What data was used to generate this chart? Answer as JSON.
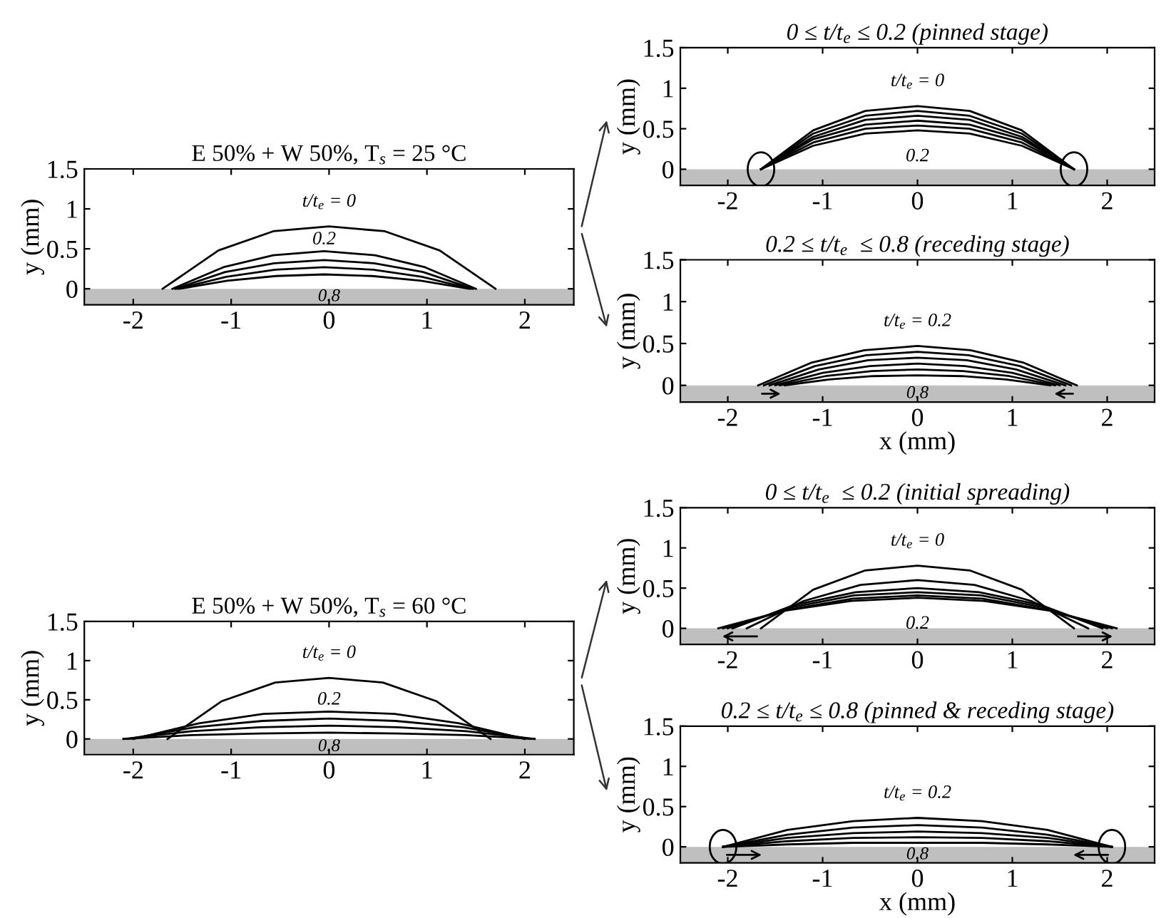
{
  "chart_data": [
    {
      "type": "line",
      "title": "E 50% + W 50%, T$_{s}$ = 25 °C",
      "ylabel": "y (mm)",
      "xlim": [
        -2.5,
        2.5
      ],
      "ylim": [
        -0.2,
        1.5
      ],
      "xticks": [
        -2,
        -1,
        0,
        1,
        2
      ],
      "yticks": [
        0,
        0.5,
        1,
        1.5
      ],
      "grid": false,
      "legend": false,
      "bands": [
        {
          "axis": "y",
          "from": -0.2,
          "to": 0,
          "color": "#bfbfbf"
        }
      ],
      "annotations": [
        "t/t$_{e}$ = 0",
        "0.2",
        "0.8"
      ],
      "series": [
        {
          "color": "#000000",
          "x": [
            -1.7,
            -1.13,
            -0.57,
            0,
            0.57,
            1.13,
            1.7
          ],
          "values": [
            0,
            0.48,
            0.72,
            0.78,
            0.72,
            0.48,
            0
          ]
        },
        {
          "color": "#000000",
          "x": [
            -1.6,
            -1.08,
            -0.57,
            -0.05,
            0.47,
            0.98,
            1.5
          ],
          "values": [
            0,
            0.27,
            0.42,
            0.47,
            0.42,
            0.27,
            0
          ]
        },
        {
          "color": "#000000",
          "x": [
            -1.57,
            -1.06,
            -0.56,
            -0.05,
            0.46,
            0.96,
            1.47
          ],
          "values": [
            0,
            0.21,
            0.32,
            0.36,
            0.32,
            0.21,
            0
          ]
        },
        {
          "color": "#000000",
          "x": [
            -1.55,
            -1.05,
            -0.55,
            -0.05,
            0.45,
            0.95,
            1.45
          ],
          "values": [
            0,
            0.15,
            0.24,
            0.27,
            0.24,
            0.15,
            0
          ]
        },
        {
          "color": "#000000",
          "x": [
            -1.53,
            -1.04,
            -0.54,
            -0.05,
            0.44,
            0.94,
            1.43
          ],
          "values": [
            0,
            0.1,
            0.16,
            0.18,
            0.16,
            0.1,
            0
          ]
        }
      ]
    },
    {
      "type": "line",
      "title": "0 ≤ t/t$_{e}$ ≤ 0.2 (pinned stage)",
      "ylabel": "y (mm)",
      "xlim": [
        -2.5,
        2.5
      ],
      "ylim": [
        -0.2,
        1.5
      ],
      "xticks": [
        -2,
        -1,
        0,
        1,
        2
      ],
      "yticks": [
        0,
        0.5,
        1,
        1.5
      ],
      "grid": false,
      "legend": false,
      "bands": [
        {
          "axis": "y",
          "from": -0.2,
          "to": 0,
          "color": "#bfbfbf"
        }
      ],
      "annotations": [
        "t/t$_{e}$ = 0",
        "0.2"
      ],
      "series": [
        {
          "color": "#000000",
          "x": [
            -1.65,
            -1.1,
            -0.55,
            0,
            0.55,
            1.1,
            1.65
          ],
          "values": [
            0,
            0.48,
            0.72,
            0.78,
            0.72,
            0.48,
            0
          ]
        },
        {
          "color": "#000000",
          "x": [
            -1.65,
            -1.1,
            -0.55,
            0,
            0.55,
            1.1,
            1.65
          ],
          "values": [
            0,
            0.44,
            0.66,
            0.72,
            0.66,
            0.44,
            0
          ]
        },
        {
          "color": "#000000",
          "x": [
            -1.65,
            -1.1,
            -0.55,
            0,
            0.55,
            1.1,
            1.65
          ],
          "values": [
            0,
            0.4,
            0.61,
            0.66,
            0.61,
            0.4,
            0
          ]
        },
        {
          "color": "#000000",
          "x": [
            -1.65,
            -1.1,
            -0.55,
            0,
            0.55,
            1.1,
            1.65
          ],
          "values": [
            0,
            0.37,
            0.55,
            0.6,
            0.55,
            0.37,
            0
          ]
        },
        {
          "color": "#000000",
          "x": [
            -1.65,
            -1.1,
            -0.55,
            0,
            0.55,
            1.1,
            1.65
          ],
          "values": [
            0,
            0.33,
            0.5,
            0.54,
            0.5,
            0.33,
            0
          ]
        },
        {
          "color": "#000000",
          "x": [
            -1.65,
            -1.1,
            -0.55,
            0,
            0.55,
            1.1,
            1.65
          ],
          "values": [
            0,
            0.29,
            0.44,
            0.48,
            0.44,
            0.29,
            0
          ]
        }
      ]
    },
    {
      "type": "line",
      "title": "0.2 ≤ t/t$_{e}$  ≤ 0.8 (receding stage)",
      "xlabel": "x (mm)",
      "ylabel": "y (mm)",
      "xlim": [
        -2.5,
        2.5
      ],
      "ylim": [
        -0.2,
        1.5
      ],
      "xticks": [
        -2,
        -1,
        0,
        1,
        2
      ],
      "yticks": [
        0,
        0.5,
        1,
        1.5
      ],
      "grid": false,
      "legend": false,
      "bands": [
        {
          "axis": "y",
          "from": -0.2,
          "to": 0,
          "color": "#bfbfbf"
        }
      ],
      "annotations": [
        "t/t$_{e}$ = 0.2",
        "0.8"
      ],
      "series": [
        {
          "color": "#000000",
          "x": [
            -1.68,
            -1.12,
            -0.56,
            0,
            0.56,
            1.12,
            1.68
          ],
          "values": [
            0,
            0.27,
            0.42,
            0.47,
            0.42,
            0.27,
            0
          ]
        },
        {
          "color": "#000000",
          "x": [
            -1.62,
            -1.08,
            -0.54,
            0,
            0.54,
            1.08,
            1.62
          ],
          "values": [
            0,
            0.23,
            0.36,
            0.4,
            0.36,
            0.23,
            0
          ]
        },
        {
          "color": "#000000",
          "x": [
            -1.56,
            -1.04,
            -0.52,
            0,
            0.52,
            1.04,
            1.56
          ],
          "values": [
            0,
            0.19,
            0.3,
            0.33,
            0.3,
            0.19,
            0
          ]
        },
        {
          "color": "#000000",
          "x": [
            -1.5,
            -1,
            -0.5,
            0,
            0.5,
            1,
            1.5
          ],
          "values": [
            0,
            0.15,
            0.23,
            0.26,
            0.23,
            0.15,
            0
          ]
        },
        {
          "color": "#000000",
          "x": [
            -1.45,
            -0.97,
            -0.48,
            0,
            0.48,
            0.97,
            1.45
          ],
          "values": [
            0,
            0.11,
            0.17,
            0.19,
            0.17,
            0.11,
            0
          ]
        },
        {
          "color": "#000000",
          "x": [
            -1.4,
            -0.93,
            -0.47,
            0,
            0.47,
            0.93,
            1.4
          ],
          "values": [
            0,
            0.07,
            0.11,
            0.12,
            0.11,
            0.07,
            0
          ]
        }
      ]
    },
    {
      "type": "line",
      "title": "E 50% + W 50%, T$_{s}$ = 60 °C",
      "ylabel": "y (mm)",
      "xlim": [
        -2.5,
        2.5
      ],
      "ylim": [
        -0.2,
        1.5
      ],
      "xticks": [
        -2,
        -1,
        0,
        1,
        2
      ],
      "yticks": [
        0,
        0.5,
        1,
        1.5
      ],
      "grid": false,
      "legend": false,
      "bands": [
        {
          "axis": "y",
          "from": -0.2,
          "to": 0,
          "color": "#bfbfbf"
        }
      ],
      "annotations": [
        "t/t$_{e}$ = 0",
        "0.2",
        "0.8"
      ],
      "series": [
        {
          "color": "#000000",
          "x": [
            -1.65,
            -1.1,
            -0.55,
            0,
            0.55,
            1.1,
            1.65
          ],
          "values": [
            0,
            0.48,
            0.72,
            0.78,
            0.72,
            0.48,
            0
          ]
        },
        {
          "color": "#000000",
          "x": [
            -2,
            -1.33,
            -0.67,
            0,
            0.67,
            1.33,
            2
          ],
          "values": [
            0,
            0.2,
            0.32,
            0.35,
            0.32,
            0.2,
            0
          ]
        },
        {
          "color": "#000000",
          "x": [
            -2.05,
            -1.37,
            -0.68,
            0,
            0.68,
            1.37,
            2.05
          ],
          "values": [
            0,
            0.15,
            0.23,
            0.26,
            0.23,
            0.15,
            0
          ]
        },
        {
          "color": "#000000",
          "x": [
            -2.1,
            -1.4,
            -0.7,
            0,
            0.7,
            1.4,
            2.1
          ],
          "values": [
            0,
            0.1,
            0.15,
            0.17,
            0.15,
            0.1,
            0
          ]
        },
        {
          "color": "#000000",
          "x": [
            -2.1,
            -1.4,
            -0.7,
            0,
            0.7,
            1.4,
            2.1
          ],
          "values": [
            0,
            0.05,
            0.07,
            0.08,
            0.07,
            0.05,
            0
          ]
        }
      ]
    },
    {
      "type": "line",
      "title": "0 ≤ t/t$_{e}$  ≤ 0.2 (initial spreading)",
      "ylabel": "y (mm)",
      "xlim": [
        -2.5,
        2.5
      ],
      "ylim": [
        -0.2,
        1.5
      ],
      "xticks": [
        -2,
        -1,
        0,
        1,
        2
      ],
      "yticks": [
        0,
        0.5,
        1,
        1.5
      ],
      "grid": false,
      "legend": false,
      "bands": [
        {
          "axis": "y",
          "from": -0.2,
          "to": 0,
          "color": "#bfbfbf"
        }
      ],
      "annotations": [
        "t/t$_{e}$ = 0",
        "0.2"
      ],
      "series": [
        {
          "color": "#000000",
          "x": [
            -1.65,
            -1.1,
            -0.55,
            0,
            0.55,
            1.1,
            1.65
          ],
          "values": [
            0,
            0.48,
            0.72,
            0.78,
            0.72,
            0.48,
            0
          ]
        },
        {
          "color": "#000000",
          "x": [
            -1.8,
            -1.2,
            -0.6,
            0,
            0.6,
            1.2,
            1.8
          ],
          "values": [
            0,
            0.34,
            0.54,
            0.6,
            0.54,
            0.34,
            0
          ]
        },
        {
          "color": "#000000",
          "x": [
            -1.95,
            -1.3,
            -0.65,
            0,
            0.65,
            1.3,
            1.95
          ],
          "values": [
            0,
            0.29,
            0.45,
            0.5,
            0.45,
            0.29,
            0
          ]
        },
        {
          "color": "#000000",
          "x": [
            -2,
            -1.33,
            -0.67,
            0,
            0.67,
            1.33,
            2
          ],
          "values": [
            0,
            0.26,
            0.41,
            0.45,
            0.41,
            0.26,
            0
          ]
        },
        {
          "color": "#000000",
          "x": [
            -2.05,
            -1.37,
            -0.68,
            0,
            0.68,
            1.37,
            2.05
          ],
          "values": [
            0,
            0.23,
            0.37,
            0.41,
            0.37,
            0.23,
            0
          ]
        },
        {
          "color": "#000000",
          "x": [
            -2.1,
            -1.4,
            -0.7,
            0,
            0.7,
            1.4,
            2.1
          ],
          "values": [
            0,
            0.22,
            0.34,
            0.38,
            0.34,
            0.22,
            0
          ]
        }
      ]
    },
    {
      "type": "line",
      "title": "0.2 ≤ t/t$_{e}$ ≤ 0.8 (pinned & receding stage)",
      "xlabel": "x (mm)",
      "ylabel": "y (mm)",
      "xlim": [
        -2.5,
        2.5
      ],
      "ylim": [
        -0.2,
        1.5
      ],
      "xticks": [
        -2,
        -1,
        0,
        1,
        2
      ],
      "yticks": [
        0,
        0.5,
        1,
        1.5
      ],
      "grid": false,
      "legend": false,
      "bands": [
        {
          "axis": "y",
          "from": -0.2,
          "to": 0,
          "color": "#bfbfbf"
        }
      ],
      "annotations": [
        "t/t$_{e}$ = 0.2",
        "0.8"
      ],
      "series": [
        {
          "color": "#000000",
          "x": [
            -2.05,
            -1.37,
            -0.68,
            0,
            0.68,
            1.37,
            2.05
          ],
          "values": [
            0,
            0.21,
            0.32,
            0.36,
            0.32,
            0.21,
            0
          ]
        },
        {
          "color": "#000000",
          "x": [
            -2.05,
            -1.37,
            -0.68,
            0,
            0.68,
            1.37,
            2.05
          ],
          "values": [
            0,
            0.15,
            0.24,
            0.27,
            0.24,
            0.15,
            0
          ]
        },
        {
          "color": "#000000",
          "x": [
            -2.05,
            -1.37,
            -0.68,
            0,
            0.68,
            1.37,
            2.05
          ],
          "values": [
            0,
            0.11,
            0.17,
            0.19,
            0.17,
            0.11,
            0
          ]
        },
        {
          "color": "#000000",
          "x": [
            -2.05,
            -1.37,
            -0.68,
            0,
            0.68,
            1.37,
            2.05
          ],
          "values": [
            0,
            0.07,
            0.11,
            0.12,
            0.11,
            0.07,
            0
          ]
        },
        {
          "color": "#000000",
          "x": [
            -2.05,
            -1.37,
            -0.68,
            0,
            0.68,
            1.37,
            2.05
          ],
          "values": [
            0,
            0.03,
            0.05,
            0.05,
            0.05,
            0.03,
            0
          ]
        }
      ]
    }
  ]
}
